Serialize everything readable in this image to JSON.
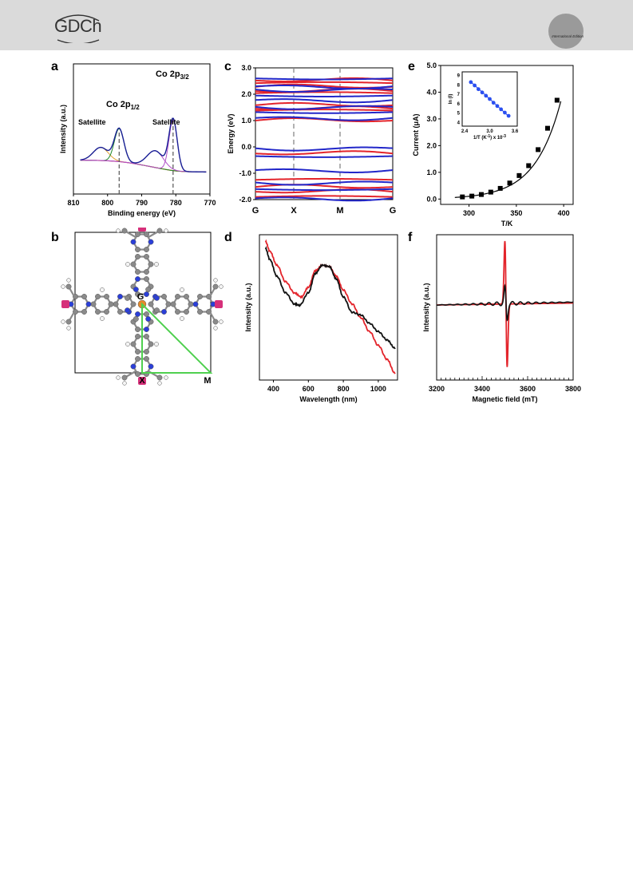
{
  "header": {
    "logo_text": "GDCh",
    "badge_text": "International Edition"
  },
  "figure": {
    "panels": [
      {
        "label": "a",
        "chart_data": {
          "type": "line",
          "xlabel": "Binding energy (eV)",
          "ylabel": "Intensity (a.u.)",
          "x_ticks": [
            810,
            800,
            790,
            780,
            770
          ],
          "xlim": [
            810,
            770
          ],
          "peaks": [
            {
              "label": "Satellite",
              "center": 802
            },
            {
              "label": "Co 2p",
              "sub": "1/2",
              "center": 796.6
            },
            {
              "label": "Satellite",
              "center": 786
            },
            {
              "label": "Co 2p",
              "sub": "3/2",
              "center": 780.8
            }
          ],
          "dashed_lines_at": [
            796.6,
            780.8
          ],
          "colors": {
            "envelope": "#1a2096",
            "fit_1": "#1f8a2a",
            "fit_2": "#b04fc8",
            "fit_3": "#e0a030",
            "background": "#e0392a"
          }
        }
      },
      {
        "label": "c",
        "chart_data": {
          "type": "line",
          "ylabel": "Energy (eV)",
          "y_ticks": [
            3.0,
            2.0,
            1.0,
            0.0,
            -1.0,
            -2.0
          ],
          "ylim": [
            -2.0,
            3.0
          ],
          "x_tick_labels": [
            "G",
            "X",
            "M",
            "G"
          ],
          "series": [
            {
              "color": "#e3242b",
              "bands": [
                2.52,
                2.42,
                2.28,
                2.12,
                2.04,
                1.58,
                1.45,
                1.38,
                1.0,
                -0.25,
                -1.25,
                -1.52,
                -1.7,
                -1.9
              ]
            },
            {
              "color": "#2227c9",
              "bands": [
                2.6,
                2.3,
                2.18,
                1.95,
                1.78,
                1.52,
                1.32,
                1.1,
                -0.05,
                -0.35,
                -0.88,
                -1.35,
                -1.6,
                -1.95
              ]
            }
          ]
        }
      },
      {
        "label": "e",
        "chart_data": {
          "type": "scatter",
          "xlabel": "T/K",
          "ylabel": "Current (μA)",
          "x_ticks": [
            300,
            350,
            400
          ],
          "xlim": [
            270,
            410
          ],
          "y_ticks": [
            0.0,
            1.0,
            2.0,
            3.0,
            4.0,
            5.0
          ],
          "ylim": [
            -0.2,
            5.0
          ],
          "x": [
            293,
            303,
            313,
            323,
            333,
            343,
            353,
            363,
            373,
            383,
            393
          ],
          "y": [
            0.08,
            0.11,
            0.17,
            0.26,
            0.4,
            0.6,
            0.88,
            1.25,
            1.85,
            2.65,
            3.7
          ],
          "inset": {
            "xlabel": "1/T (K",
            "xlabel_sup": "-1",
            "xlabel_tail": ") x 10",
            "xlabel_tail_sup": "-3",
            "ylabel": "ln (I)",
            "x_ticks": [
              2.4,
              3.0,
              3.6
            ],
            "y_ticks": [
              9,
              8,
              7,
              6,
              5,
              4
            ],
            "x": [
              2.55,
              2.64,
              2.73,
              2.82,
              2.91,
              3.0,
              3.09,
              3.18,
              3.27,
              3.36,
              3.45
            ],
            "y": [
              8.3,
              7.95,
              7.55,
              7.2,
              6.85,
              6.5,
              6.1,
              5.75,
              5.4,
              5.05,
              4.7
            ]
          }
        }
      },
      {
        "label": "b",
        "points": [
          "G",
          "X",
          "M"
        ],
        "colors": {
          "carbon": "#8a8a8a",
          "nitrogen": "#2b3fd8",
          "hydrogen": "#f4f4f4",
          "cobalt": "#e58a2a",
          "edge": "#d6307a",
          "path": "#4fd04f"
        }
      },
      {
        "label": "d",
        "chart_data": {
          "type": "line",
          "xlabel": "Wavelength (nm)",
          "ylabel": "Intensity (a.u.)",
          "x_ticks": [
            400,
            600,
            800,
            1000
          ],
          "xlim": [
            320,
            1110
          ],
          "series": [
            {
              "color": "#e3242b",
              "x": [
                355,
                380,
                420,
                470,
                520,
                560,
                600,
                640,
                680,
                720,
                760,
                800,
                850,
                900,
                950,
                1000,
                1050,
                1095
              ],
              "y": [
                0.95,
                0.88,
                0.78,
                0.66,
                0.58,
                0.55,
                0.62,
                0.74,
                0.78,
                0.77,
                0.7,
                0.6,
                0.5,
                0.4,
                0.3,
                0.2,
                0.1,
                0.0
              ]
            },
            {
              "color": "#111111",
              "x": [
                355,
                380,
                420,
                470,
                520,
                550,
                600,
                640,
                680,
                720,
                760,
                800,
                850,
                900,
                950,
                1000,
                1050,
                1095
              ],
              "y": [
                0.9,
                0.82,
                0.7,
                0.58,
                0.5,
                0.49,
                0.58,
                0.72,
                0.78,
                0.77,
                0.68,
                0.55,
                0.44,
                0.42,
                0.36,
                0.3,
                0.24,
                0.18
              ]
            }
          ]
        }
      },
      {
        "label": "f",
        "chart_data": {
          "type": "line",
          "xlabel": "Magnetic field (mT)",
          "ylabel": "Intensity (a.u.)",
          "x_ticks": [
            3200,
            3400,
            3600,
            3800
          ],
          "xlim": [
            3200,
            3800
          ],
          "series": [
            {
              "color": "#e3242b",
              "center": 3505,
              "amplitude": 1.0
            },
            {
              "color": "#111111",
              "center": 3505,
              "amplitude": 0.25
            }
          ]
        }
      }
    ]
  }
}
